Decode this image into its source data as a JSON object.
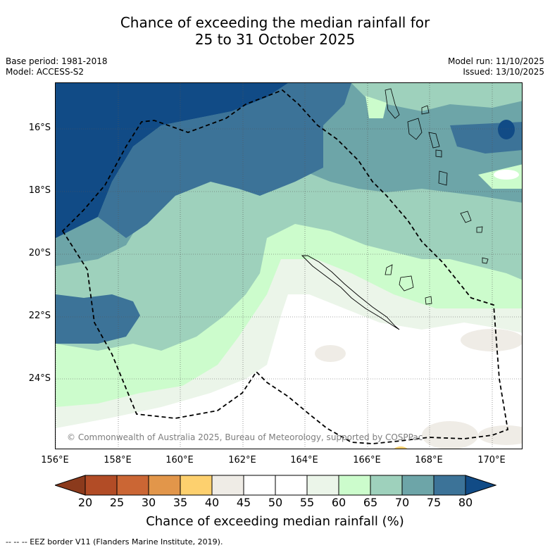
{
  "header": {
    "title_line1": "Chance of exceeding the median rainfall for",
    "title_line2": "25 to 31 October 2025"
  },
  "meta": {
    "base_period": "Base period: 1981-2018",
    "model": "Model: ACCESS-S2",
    "model_run": "Model run: 11/10/2025",
    "issued": "Issued: 13/10/2025"
  },
  "axes": {
    "lat_labels": [
      "16°S",
      "18°S",
      "20°S",
      "22°S",
      "24°S"
    ],
    "lon_labels": [
      "156°E",
      "158°E",
      "160°E",
      "162°E",
      "164°E",
      "166°E",
      "168°E",
      "170°E"
    ]
  },
  "map": {
    "copyright": "© Commonwealth of Australia 2025, Bureau of Meteorology, supported by COSPPac"
  },
  "colorbar": {
    "ticks": [
      "20",
      "25",
      "30",
      "35",
      "40",
      "45",
      "50",
      "55",
      "60",
      "65",
      "70",
      "75",
      "80"
    ],
    "colors": [
      "#b24c26",
      "#cb6634",
      "#e2964a",
      "#fdd06e",
      "#efece6",
      "#ffffff",
      "#ffffff",
      "#ebf5e9",
      "#ccfccc",
      "#9ed1bc",
      "#6da5a8",
      "#3c7398"
    ],
    "low_end_color": "#8b3a1c",
    "high_end_color": "#114b86",
    "label": "Chance of exceeding median rainfall (%)"
  },
  "footer": {
    "eez_note": "--  --  -- EEZ border V11 (Flanders Marine Institute, 2019)."
  }
}
